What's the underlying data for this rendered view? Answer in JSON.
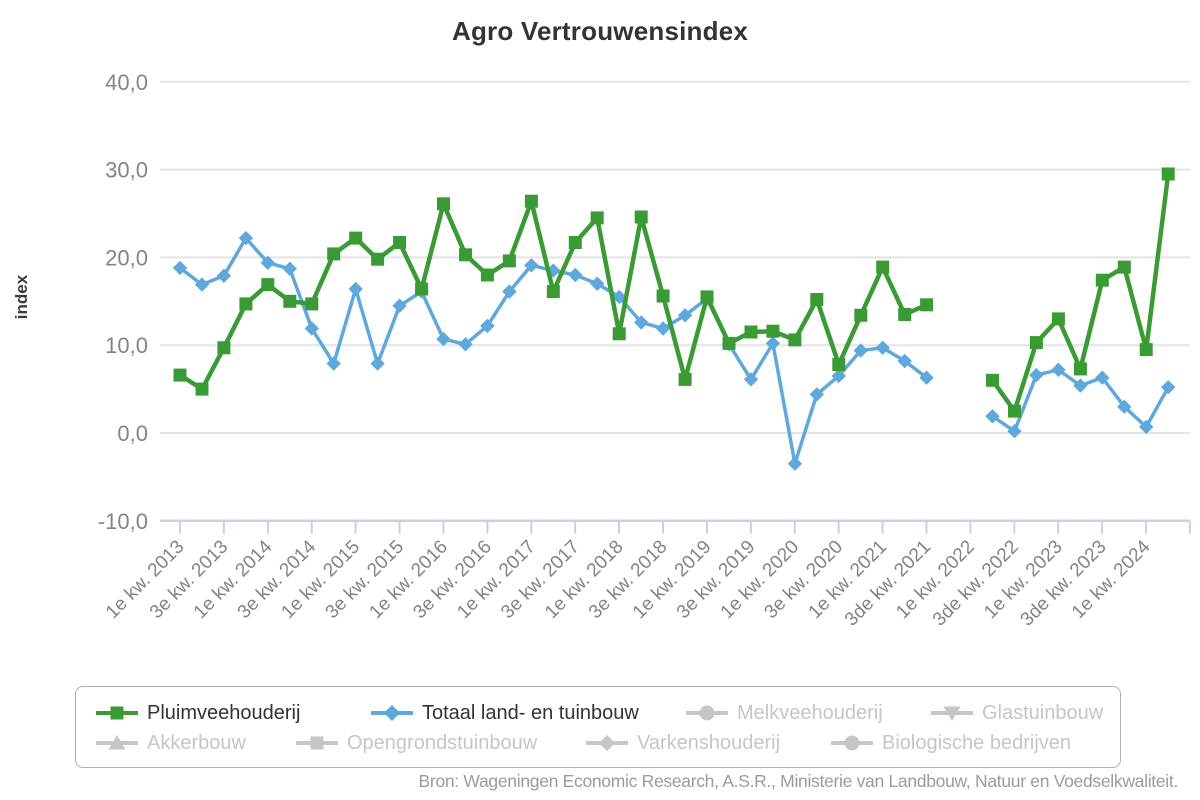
{
  "title": "Agro Vertrouwensindex",
  "source": "Bron: Wageningen Economic Research, A.S.R., Ministerie van Landbouw, Natuur en Voedselkwaliteit.",
  "y_axis": {
    "title": "index",
    "tick_labels": [
      "40,0",
      "30,0",
      "20,0",
      "10,0",
      "0,0",
      "-10,0"
    ],
    "tick_values": [
      40,
      30,
      20,
      10,
      0,
      -10
    ]
  },
  "x_axis": {
    "tick_labels": [
      "1e kw. 2013",
      "3e kw. 2013",
      "1e kw. 2014",
      "3e kw. 2014",
      "1e kw. 2015",
      "3e kw. 2015",
      "1e kw. 2016",
      "3e kw. 2016",
      "1e kw. 2017",
      "3e kw. 2017",
      "1e kw. 2018",
      "3e kw. 2018",
      "1e kw. 2019",
      "3e kw. 2019",
      "1e kw. 2020",
      "3e kw. 2020",
      "1e kw. 2021",
      "3de kw. 2021",
      "1e kw. 2022",
      "3de kw. 2022",
      "1e kw. 2023",
      "3de kw. 2023",
      "1e kw. 2024"
    ]
  },
  "colors": {
    "pluimveehouderij": "#3a9b35",
    "totaal_land_en_tuinbouw": "#5fa8dc",
    "inactive": "#c6c6c6",
    "grid": "#e4e4e4",
    "axis": "#c9d0e8",
    "axis_label": "#848484",
    "title_text": "#333333",
    "source_text": "#9b9b9b"
  },
  "chart_data": {
    "type": "line",
    "title": "Agro Vertrouwensindex",
    "xlabel": "",
    "ylabel": "index",
    "ylim": [
      -10,
      40
    ],
    "y_ticks": [
      40,
      30,
      20,
      10,
      0,
      -10
    ],
    "grid": "horizontal",
    "legend_position": "bottom",
    "x": [
      "1e kw. 2013",
      "2e kw. 2013",
      "3e kw. 2013",
      "4e kw. 2013",
      "1e kw. 2014",
      "2e kw. 2014",
      "3e kw. 2014",
      "4e kw. 2014",
      "1e kw. 2015",
      "2e kw. 2015",
      "3e kw. 2015",
      "4e kw. 2015",
      "1e kw. 2016",
      "2e kw. 2016",
      "3e kw. 2016",
      "4e kw. 2016",
      "1e kw. 2017",
      "2e kw. 2017",
      "3e kw. 2017",
      "4e kw. 2017",
      "1e kw. 2018",
      "2e kw. 2018",
      "3e kw. 2018",
      "4e kw. 2018",
      "1e kw. 2019",
      "2e kw. 2019",
      "3e kw. 2019",
      "4e kw. 2019",
      "1e kw. 2020",
      "2e kw. 2020",
      "3e kw. 2020",
      "4e kw. 2020",
      "1e kw. 2021",
      "2e kw. 2021",
      "3e kw. 2021",
      "4e kw. 2021",
      "1e kw. 2022",
      "2e kw. 2022",
      "3e kw. 2022",
      "4e kw. 2022",
      "1e kw. 2023",
      "2e kw. 2023",
      "3e kw. 2023",
      "4e kw. 2023",
      "1e kw. 2024",
      "2e kw. 2024"
    ],
    "series": [
      {
        "name": "Pluimveehouderij",
        "color": "#3a9b35",
        "marker": "square",
        "values": [
          6.6,
          5.0,
          9.7,
          14.7,
          16.9,
          15.0,
          14.7,
          20.4,
          22.2,
          19.8,
          21.7,
          16.4,
          26.1,
          20.3,
          18.0,
          19.6,
          26.4,
          16.1,
          21.7,
          24.5,
          11.3,
          24.6,
          15.6,
          6.1,
          15.5,
          10.2,
          11.5,
          11.6,
          10.6,
          15.2,
          7.8,
          13.4,
          18.9,
          13.5,
          14.6,
          null,
          null,
          6.0,
          2.5,
          10.3,
          13.0,
          7.3,
          17.4,
          18.9,
          9.5,
          29.5
        ]
      },
      {
        "name": "Totaal land- en tuinbouw",
        "color": "#5fa8dc",
        "marker": "diamond",
        "values": [
          18.8,
          16.9,
          17.9,
          22.2,
          19.4,
          18.7,
          11.9,
          7.9,
          16.4,
          7.9,
          14.5,
          16.1,
          10.7,
          10.1,
          12.2,
          16.1,
          19.1,
          18.5,
          18.0,
          17.0,
          15.5,
          12.6,
          11.9,
          13.4,
          15.3,
          10.1,
          6.1,
          10.2,
          -3.5,
          4.4,
          6.5,
          9.4,
          9.7,
          8.2,
          6.3,
          null,
          null,
          1.9,
          0.2,
          6.6,
          7.2,
          5.4,
          6.3,
          3.0,
          0.7,
          5.2
        ]
      }
    ]
  },
  "legend": {
    "items": [
      {
        "label": "Pluimveehouderij",
        "marker": "square",
        "active": true,
        "color": "#3a9b35"
      },
      {
        "label": "Totaal land- en tuinbouw",
        "marker": "diamond",
        "active": true,
        "color": "#5fa8dc"
      },
      {
        "label": "Melkveehouderij",
        "marker": "circle",
        "active": false,
        "color": "#c6c6c6"
      },
      {
        "label": "Glastuinbouw",
        "marker": "triangle-down",
        "active": false,
        "color": "#c6c6c6"
      },
      {
        "label": "Akkerbouw",
        "marker": "triangle-up",
        "active": false,
        "color": "#c6c6c6"
      },
      {
        "label": "Opengrondstuinbouw",
        "marker": "square",
        "active": false,
        "color": "#c6c6c6"
      },
      {
        "label": "Varkenshouderij",
        "marker": "diamond",
        "active": false,
        "color": "#c6c6c6"
      },
      {
        "label": "Biologische bedrijven",
        "marker": "circle",
        "active": false,
        "color": "#c6c6c6"
      }
    ]
  }
}
